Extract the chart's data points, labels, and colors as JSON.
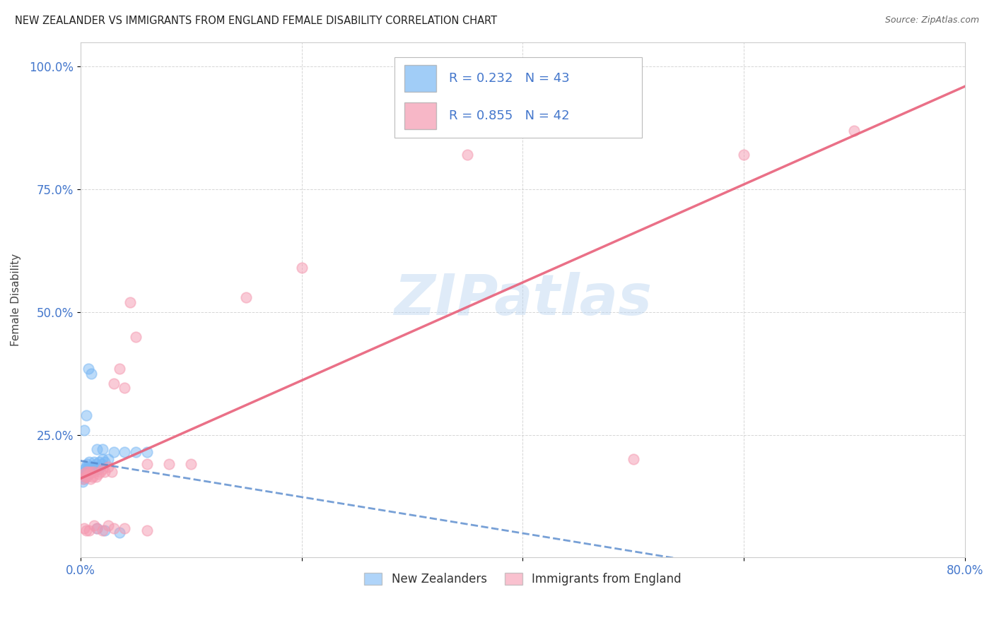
{
  "title": "NEW ZEALANDER VS IMMIGRANTS FROM ENGLAND FEMALE DISABILITY CORRELATION CHART",
  "source": "Source: ZipAtlas.com",
  "ylabel": "Female Disability",
  "xlim": [
    0.0,
    0.8
  ],
  "ylim": [
    0.0,
    1.05
  ],
  "x_ticks": [
    0.0,
    0.2,
    0.4,
    0.6,
    0.8
  ],
  "x_tick_labels": [
    "0.0%",
    "",
    "",
    "",
    "80.0%"
  ],
  "y_ticks": [
    0.25,
    0.5,
    0.75,
    1.0
  ],
  "y_tick_labels": [
    "25.0%",
    "50.0%",
    "75.0%",
    "100.0%"
  ],
  "nz_color": "#7ab8f5",
  "eng_color": "#f599b0",
  "nz_line_color": "#5588cc",
  "eng_line_color": "#e8607a",
  "nz_R": 0.232,
  "nz_N": 43,
  "eng_R": 0.855,
  "eng_N": 42,
  "watermark": "ZIPatlas",
  "legend_labels": [
    "New Zealanders",
    "Immigrants from England"
  ],
  "nz_points_x": [
    0.002,
    0.003,
    0.003,
    0.004,
    0.004,
    0.005,
    0.005,
    0.006,
    0.006,
    0.007,
    0.007,
    0.008,
    0.008,
    0.009,
    0.009,
    0.01,
    0.01,
    0.011,
    0.012,
    0.012,
    0.013,
    0.014,
    0.015,
    0.016,
    0.017,
    0.018,
    0.019,
    0.02,
    0.022,
    0.025,
    0.003,
    0.005,
    0.007,
    0.01,
    0.015,
    0.02,
    0.03,
    0.04,
    0.05,
    0.06,
    0.022,
    0.015,
    0.035
  ],
  "nz_points_y": [
    0.155,
    0.16,
    0.175,
    0.165,
    0.18,
    0.17,
    0.185,
    0.175,
    0.19,
    0.17,
    0.185,
    0.18,
    0.195,
    0.175,
    0.18,
    0.185,
    0.175,
    0.18,
    0.185,
    0.195,
    0.18,
    0.19,
    0.185,
    0.18,
    0.195,
    0.185,
    0.19,
    0.2,
    0.195,
    0.2,
    0.26,
    0.29,
    0.385,
    0.375,
    0.22,
    0.22,
    0.215,
    0.215,
    0.215,
    0.215,
    0.055,
    0.06,
    0.05
  ],
  "eng_points_x": [
    0.002,
    0.003,
    0.004,
    0.005,
    0.006,
    0.007,
    0.008,
    0.009,
    0.01,
    0.011,
    0.012,
    0.014,
    0.016,
    0.018,
    0.02,
    0.022,
    0.025,
    0.028,
    0.03,
    0.035,
    0.04,
    0.045,
    0.05,
    0.06,
    0.08,
    0.1,
    0.15,
    0.2,
    0.35,
    0.5,
    0.6,
    0.7,
    0.003,
    0.005,
    0.008,
    0.012,
    0.015,
    0.02,
    0.025,
    0.03,
    0.04,
    0.06
  ],
  "eng_points_y": [
    0.16,
    0.17,
    0.165,
    0.175,
    0.165,
    0.175,
    0.17,
    0.16,
    0.175,
    0.165,
    0.175,
    0.165,
    0.17,
    0.175,
    0.18,
    0.175,
    0.185,
    0.175,
    0.355,
    0.385,
    0.345,
    0.52,
    0.45,
    0.19,
    0.19,
    0.19,
    0.53,
    0.59,
    0.82,
    0.2,
    0.82,
    0.87,
    0.06,
    0.055,
    0.055,
    0.065,
    0.06,
    0.055,
    0.065,
    0.06,
    0.06,
    0.055
  ]
}
